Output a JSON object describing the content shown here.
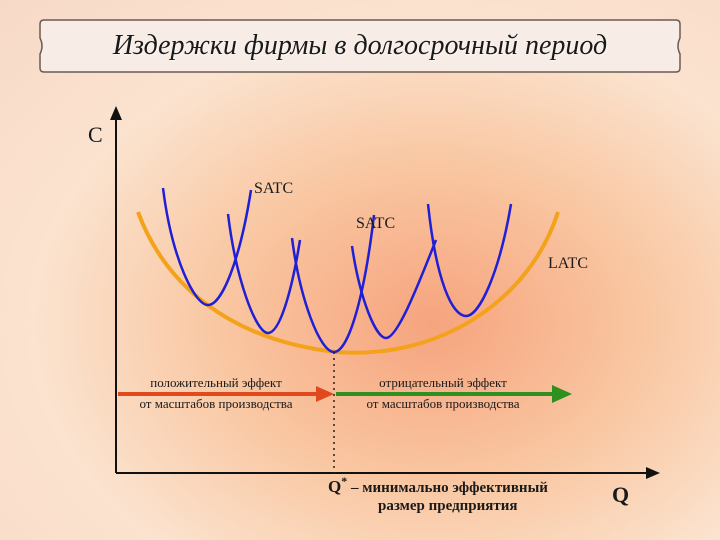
{
  "title": "Издержки фирмы в долгосрочный период",
  "axes": {
    "y_label": "C",
    "x_label": "Q"
  },
  "curves": {
    "satc_label_1": "SATC",
    "satc_label_2": "SATC",
    "latc_label": "LATC"
  },
  "effects": {
    "positive_line1": "положительный эффект",
    "positive_line2": "от масштабов производства",
    "negative_line1": "отрицательный эффект",
    "negative_line2": "от масштабов производства"
  },
  "q_star": {
    "symbol": "Q",
    "superscript": "*",
    "line1": " – минимально эффективный",
    "line2": "размер предприятия"
  },
  "colors": {
    "latc": "#f4a21c",
    "satc": "#1f1fd6",
    "positive_arrow": "#e0481e",
    "negative_arrow": "#2f8f1f",
    "axis": "#111111"
  }
}
